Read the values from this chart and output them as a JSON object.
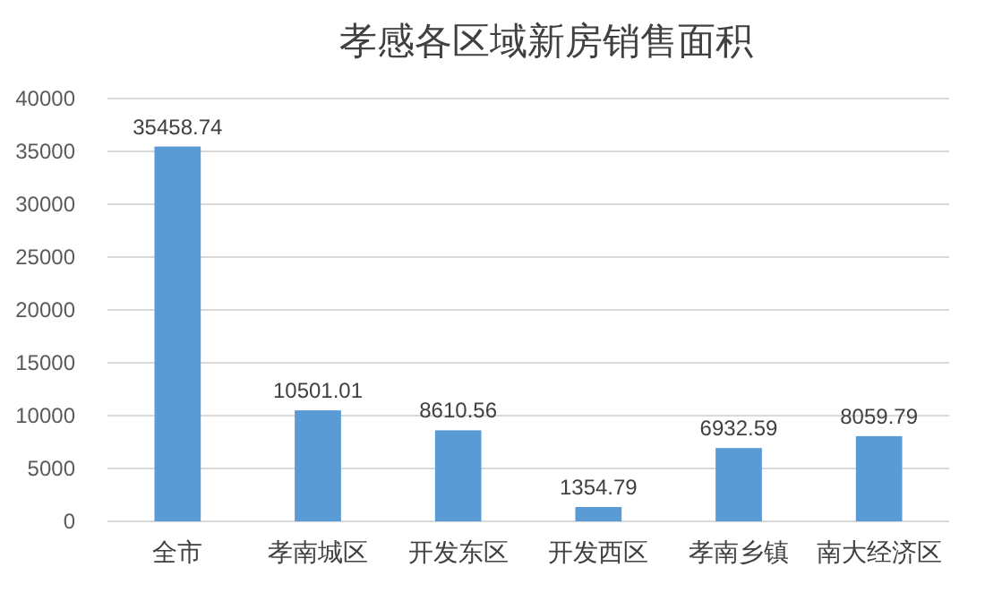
{
  "chart_data": {
    "type": "bar",
    "title": "孝感各区域新房销售面积",
    "categories": [
      "全市",
      "孝南城区",
      "开发东区",
      "开发西区",
      "孝南乡镇",
      "南大经济区"
    ],
    "values": [
      35458.74,
      10501.01,
      8610.56,
      1354.79,
      6932.59,
      8059.79
    ],
    "color": "#5b9bd5",
    "ylim": [
      0,
      40000
    ],
    "yticks": [
      0,
      5000,
      10000,
      15000,
      20000,
      25000,
      30000,
      35000,
      40000
    ],
    "grid": "y",
    "data_labels": true
  }
}
